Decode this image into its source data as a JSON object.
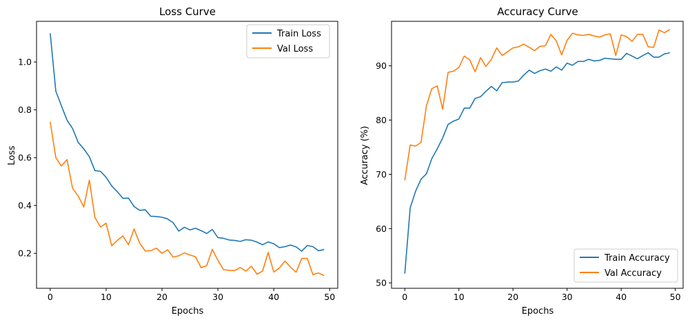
{
  "colors": {
    "train": "#1f77b4",
    "val": "#ff7f0e",
    "frame": "#000000"
  },
  "chart_data": [
    {
      "type": "line",
      "title": "Loss Curve",
      "xlabel": "Epochs",
      "ylabel": "Loss",
      "xlim": [
        -2.45,
        51.45
      ],
      "ylim": [
        0.054,
        1.17
      ],
      "xticks": [
        0,
        10,
        20,
        30,
        40,
        50
      ],
      "yticks": [
        0.2,
        0.4,
        0.6,
        0.8,
        1.0
      ],
      "ytick_labels": [
        "0.2",
        "0.4",
        "0.6",
        "0.8",
        "1.0"
      ],
      "legend_position": "top-right",
      "grid": false,
      "x": [
        0,
        1,
        2,
        3,
        4,
        5,
        6,
        7,
        8,
        9,
        10,
        11,
        12,
        13,
        14,
        15,
        16,
        17,
        18,
        19,
        20,
        21,
        22,
        23,
        24,
        25,
        26,
        27,
        28,
        29,
        30,
        31,
        32,
        33,
        34,
        35,
        36,
        37,
        38,
        39,
        40,
        41,
        42,
        43,
        44,
        45,
        46,
        47,
        48,
        49
      ],
      "series": [
        {
          "name": "Train Loss",
          "color": "#1f77b4",
          "values": [
            1.12,
            0.878,
            0.817,
            0.757,
            0.722,
            0.664,
            0.637,
            0.604,
            0.546,
            0.543,
            0.518,
            0.482,
            0.458,
            0.43,
            0.431,
            0.396,
            0.38,
            0.382,
            0.355,
            0.354,
            0.351,
            0.344,
            0.328,
            0.293,
            0.309,
            0.298,
            0.305,
            0.295,
            0.283,
            0.3,
            0.266,
            0.263,
            0.256,
            0.254,
            0.25,
            0.257,
            0.255,
            0.247,
            0.236,
            0.248,
            0.24,
            0.224,
            0.228,
            0.235,
            0.227,
            0.209,
            0.233,
            0.228,
            0.211,
            0.216
          ]
        },
        {
          "name": "Val Loss",
          "color": "#ff7f0e",
          "values": [
            0.75,
            0.6,
            0.565,
            0.592,
            0.472,
            0.44,
            0.394,
            0.506,
            0.35,
            0.31,
            0.326,
            0.232,
            0.254,
            0.273,
            0.236,
            0.302,
            0.243,
            0.21,
            0.211,
            0.222,
            0.2,
            0.215,
            0.184,
            0.19,
            0.202,
            0.193,
            0.186,
            0.14,
            0.149,
            0.217,
            0.171,
            0.132,
            0.129,
            0.128,
            0.141,
            0.126,
            0.146,
            0.113,
            0.126,
            0.204,
            0.122,
            0.139,
            0.168,
            0.142,
            0.121,
            0.179,
            0.179,
            0.111,
            0.118,
            0.107
          ]
        }
      ]
    },
    {
      "type": "line",
      "title": "Accuracy Curve",
      "xlabel": "Epochs",
      "ylabel": "Accuracy (%)",
      "xlim": [
        -2.45,
        51.45
      ],
      "ylim": [
        49.0,
        98.2
      ],
      "xticks": [
        0,
        10,
        20,
        30,
        40,
        50
      ],
      "yticks": [
        50,
        60,
        70,
        80,
        90
      ],
      "ytick_labels": [
        "50",
        "60",
        "70",
        "80",
        "90"
      ],
      "legend_position": "lower-right",
      "grid": false,
      "x": [
        0,
        1,
        2,
        3,
        4,
        5,
        6,
        7,
        8,
        9,
        10,
        11,
        12,
        13,
        14,
        15,
        16,
        17,
        18,
        19,
        20,
        21,
        22,
        23,
        24,
        25,
        26,
        27,
        28,
        29,
        30,
        31,
        32,
        33,
        34,
        35,
        36,
        37,
        38,
        39,
        40,
        41,
        42,
        43,
        44,
        45,
        46,
        47,
        48,
        49
      ],
      "series": [
        {
          "name": "Train Accuracy",
          "color": "#1f77b4",
          "values": [
            51.7,
            63.8,
            66.9,
            69.1,
            70.1,
            72.9,
            74.7,
            76.7,
            79.2,
            79.8,
            80.2,
            82.2,
            82.2,
            84.0,
            84.3,
            85.3,
            86.2,
            85.4,
            86.9,
            87.0,
            87.0,
            87.2,
            88.3,
            89.2,
            88.6,
            89.1,
            89.4,
            89.0,
            89.8,
            89.2,
            90.5,
            90.1,
            90.8,
            90.8,
            91.2,
            90.9,
            91.0,
            91.4,
            91.3,
            91.2,
            91.2,
            92.3,
            91.8,
            91.3,
            91.9,
            92.4,
            91.6,
            91.6,
            92.2,
            92.4
          ]
        },
        {
          "name": "Val Accuracy",
          "color": "#ff7f0e",
          "values": [
            68.9,
            75.4,
            75.2,
            75.9,
            82.6,
            85.8,
            86.3,
            82.0,
            88.8,
            89.0,
            89.7,
            91.8,
            91.1,
            88.9,
            91.5,
            89.9,
            91.2,
            93.3,
            91.9,
            92.6,
            93.3,
            93.5,
            94.0,
            93.4,
            92.8,
            93.6,
            93.7,
            95.8,
            94.6,
            92.0,
            94.7,
            96.0,
            95.7,
            95.6,
            95.8,
            95.5,
            95.3,
            95.7,
            95.9,
            91.9,
            95.7,
            95.4,
            94.5,
            95.8,
            95.8,
            93.5,
            93.4,
            96.6,
            96.1,
            96.7
          ]
        }
      ]
    }
  ]
}
